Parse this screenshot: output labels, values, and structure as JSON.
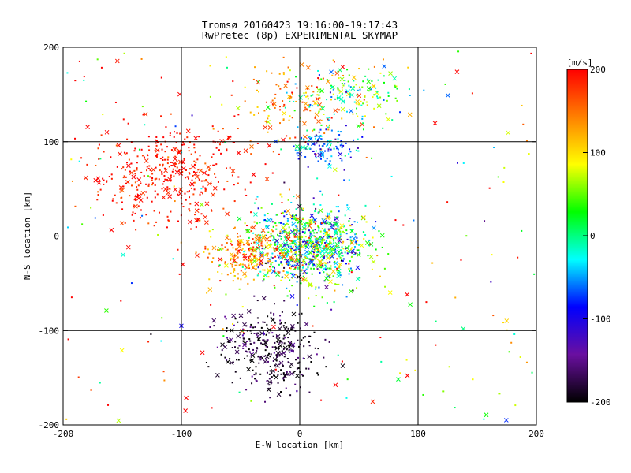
{
  "chart_data": {
    "type": "scatter",
    "title": "Tromsø 20160423 19:16:00-19:17:43",
    "subtitle": "RwPretec (8p) EXPERIMENTAL SKYMAP",
    "xlabel": "E-W location [km]",
    "ylabel": "N-S location [km]",
    "xlim": [
      -200,
      200
    ],
    "ylim": [
      -200,
      200
    ],
    "x_ticks": [
      -200,
      -100,
      0,
      100,
      200
    ],
    "y_ticks": [
      -200,
      -100,
      0,
      100,
      200
    ],
    "grid": true,
    "grid_lines_x": [
      -100,
      0,
      100
    ],
    "grid_lines_y": [
      -100,
      0,
      100
    ],
    "marker_types": [
      "dot",
      "x"
    ],
    "colorbar": {
      "label": "[m/s]",
      "range": [
        -200,
        200
      ],
      "ticks": [
        200,
        100,
        0,
        -100,
        -200
      ],
      "colormap": [
        "#000000",
        "#6a0fa0",
        "#0000ff",
        "#00ffff",
        "#00ff00",
        "#ffff00",
        "#ff8000",
        "#ff0000"
      ]
    },
    "clusters": [
      {
        "region": "north-west",
        "center": [
          -110,
          65
        ],
        "spread": [
          55,
          45
        ],
        "velocity": 190,
        "velocity_spread": 15,
        "count": 420
      },
      {
        "region": "north",
        "center": [
          -5,
          140
        ],
        "spread": [
          45,
          40
        ],
        "velocity": 140,
        "velocity_spread": 35,
        "count": 140
      },
      {
        "region": "north-east",
        "center": [
          45,
          150
        ],
        "spread": [
          40,
          25
        ],
        "velocity": 20,
        "velocity_spread": 60,
        "count": 160
      },
      {
        "region": "north-center",
        "center": [
          20,
          95
        ],
        "spread": [
          25,
          18
        ],
        "velocity": -60,
        "velocity_spread": 40,
        "count": 120
      },
      {
        "region": "center",
        "center": [
          10,
          -10
        ],
        "spread": [
          38,
          35
        ],
        "velocity": 10,
        "velocity_spread": 80,
        "count": 900
      },
      {
        "region": "center-west",
        "center": [
          -45,
          -20
        ],
        "spread": [
          25,
          25
        ],
        "velocity": 140,
        "velocity_spread": 40,
        "count": 220
      },
      {
        "region": "south",
        "center": [
          -25,
          -120
        ],
        "spread": [
          35,
          35
        ],
        "velocity": -185,
        "velocity_spread": 25,
        "count": 340
      },
      {
        "region": "scattered",
        "center": [
          0,
          0
        ],
        "spread": [
          200,
          200
        ],
        "velocity": 100,
        "velocity_spread": 120,
        "count": 200
      }
    ]
  }
}
